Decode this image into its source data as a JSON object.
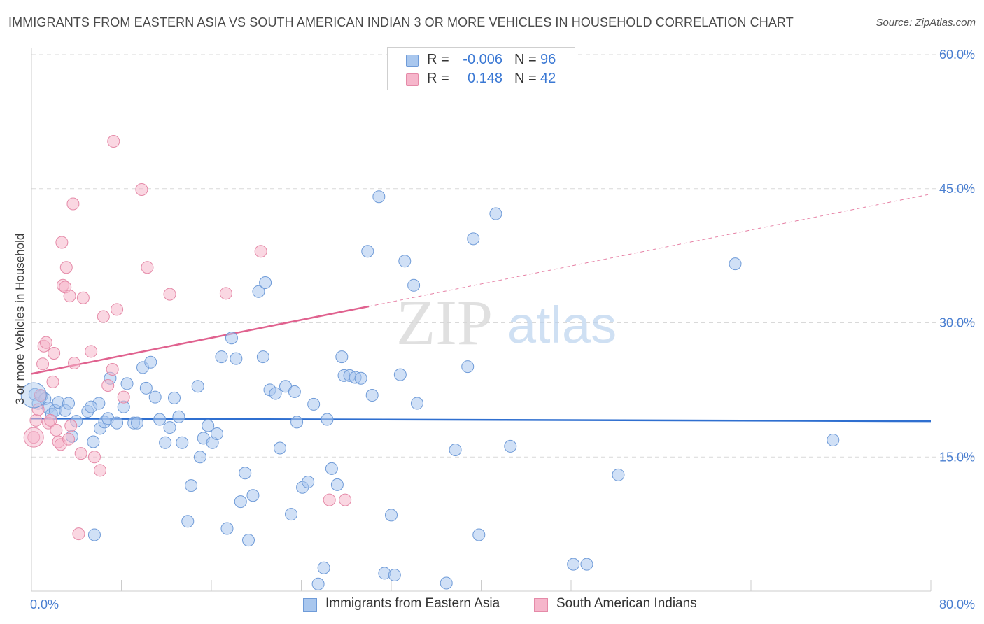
{
  "title": "IMMIGRANTS FROM EASTERN ASIA VS SOUTH AMERICAN INDIAN 3 OR MORE VEHICLES IN HOUSEHOLD CORRELATION CHART",
  "source": "Source: ZipAtlas.com",
  "watermark": {
    "zip": "ZIP",
    "atlas": "atlas"
  },
  "legend": {
    "rows": [
      {
        "r_label": "R =",
        "r_value": "-0.006",
        "n_label": "N =",
        "n_value": "96"
      },
      {
        "r_label": "R =",
        "r_value": "0.148",
        "n_label": "N =",
        "n_value": "42"
      }
    ]
  },
  "bottom_legend": {
    "series1": "Immigrants from Eastern Asia",
    "series2": "South American Indians"
  },
  "colors": {
    "blue_fill": "#a9c7ee",
    "blue_stroke": "#6f9bd8",
    "blue_line": "#2f6fd0",
    "pink_fill": "#f6b6cb",
    "pink_stroke": "#e58aa8",
    "pink_line": "#e0628f",
    "tick_text": "#4a7fd1",
    "grid": "#d9d9d9"
  },
  "chart_data": {
    "type": "scatter",
    "title": "IMMIGRANTS FROM EASTERN ASIA VS SOUTH AMERICAN INDIAN 3 OR MORE VEHICLES IN HOUSEHOLD CORRELATION CHART",
    "xlabel": "",
    "ylabel": "3 or more Vehicles in Household",
    "xlim": [
      0,
      80
    ],
    "ylim": [
      0,
      60
    ],
    "x_tick_labels": [
      "0.0%",
      "80.0%"
    ],
    "y_ticks": [
      15,
      30,
      45,
      60
    ],
    "y_tick_labels": [
      "15.0%",
      "30.0%",
      "45.0%",
      "60.0%"
    ],
    "series": [
      {
        "name": "Immigrants from Eastern Asia",
        "r": -0.006,
        "n": 96,
        "trend": {
          "x0": 0,
          "y0": 19.3,
          "x1": 80,
          "y1": 19.0,
          "dashed_from": null
        },
        "points": [
          [
            0.3,
            22.0
          ],
          [
            0.6,
            21.0
          ],
          [
            0.9,
            21.8
          ],
          [
            1.2,
            21.5
          ],
          [
            1.5,
            20.5
          ],
          [
            1.8,
            19.8
          ],
          [
            2.1,
            20.2
          ],
          [
            2.4,
            21.1
          ],
          [
            3.0,
            20.2
          ],
          [
            3.3,
            21.0
          ],
          [
            3.6,
            17.3
          ],
          [
            4.0,
            19.0
          ],
          [
            5.0,
            20.1
          ],
          [
            6.0,
            21.0
          ],
          [
            5.3,
            20.6
          ],
          [
            5.5,
            16.7
          ],
          [
            5.6,
            6.3
          ],
          [
            6.1,
            18.2
          ],
          [
            6.5,
            18.9
          ],
          [
            6.8,
            19.3
          ],
          [
            7.0,
            23.8
          ],
          [
            7.6,
            18.8
          ],
          [
            8.2,
            20.6
          ],
          [
            8.5,
            23.2
          ],
          [
            9.1,
            18.8
          ],
          [
            9.4,
            18.8
          ],
          [
            9.9,
            25.0
          ],
          [
            10.2,
            22.7
          ],
          [
            10.6,
            25.6
          ],
          [
            11.0,
            21.7
          ],
          [
            11.4,
            19.2
          ],
          [
            11.9,
            16.6
          ],
          [
            12.3,
            18.3
          ],
          [
            12.7,
            21.6
          ],
          [
            13.1,
            19.5
          ],
          [
            13.4,
            16.6
          ],
          [
            13.9,
            7.8
          ],
          [
            14.2,
            11.8
          ],
          [
            14.8,
            22.9
          ],
          [
            15.0,
            15.0
          ],
          [
            15.3,
            17.1
          ],
          [
            15.7,
            18.5
          ],
          [
            16.1,
            16.6
          ],
          [
            16.5,
            17.6
          ],
          [
            16.9,
            26.2
          ],
          [
            17.4,
            7.0
          ],
          [
            17.8,
            28.3
          ],
          [
            18.2,
            26.0
          ],
          [
            18.6,
            10.0
          ],
          [
            19.0,
            13.2
          ],
          [
            19.3,
            5.7
          ],
          [
            19.7,
            10.7
          ],
          [
            20.2,
            33.5
          ],
          [
            20.6,
            26.2
          ],
          [
            20.8,
            34.5
          ],
          [
            21.2,
            22.5
          ],
          [
            21.7,
            22.1
          ],
          [
            22.1,
            16.0
          ],
          [
            22.6,
            22.9
          ],
          [
            23.1,
            8.6
          ],
          [
            23.4,
            22.3
          ],
          [
            23.6,
            18.9
          ],
          [
            24.1,
            11.6
          ],
          [
            24.6,
            12.2
          ],
          [
            25.1,
            20.9
          ],
          [
            25.5,
            0.8
          ],
          [
            26.0,
            2.6
          ],
          [
            26.3,
            19.2
          ],
          [
            26.7,
            13.7
          ],
          [
            27.2,
            11.9
          ],
          [
            27.6,
            26.2
          ],
          [
            27.8,
            24.1
          ],
          [
            28.3,
            24.1
          ],
          [
            28.8,
            23.9
          ],
          [
            29.3,
            23.8
          ],
          [
            29.9,
            38.0
          ],
          [
            30.3,
            21.9
          ],
          [
            30.9,
            44.1
          ],
          [
            31.4,
            2.0
          ],
          [
            32.0,
            8.5
          ],
          [
            32.3,
            1.8
          ],
          [
            32.8,
            24.2
          ],
          [
            33.2,
            36.9
          ],
          [
            34.0,
            34.2
          ],
          [
            34.3,
            21.0
          ],
          [
            36.9,
            0.9
          ],
          [
            37.7,
            15.8
          ],
          [
            38.8,
            25.1
          ],
          [
            39.3,
            39.4
          ],
          [
            39.8,
            6.3
          ],
          [
            41.3,
            42.2
          ],
          [
            42.6,
            16.2
          ],
          [
            48.2,
            3.0
          ],
          [
            49.4,
            3.0
          ],
          [
            52.2,
            13.0
          ],
          [
            62.6,
            36.6
          ],
          [
            71.3,
            16.9
          ]
        ]
      },
      {
        "name": "South American Indians",
        "r": 0.148,
        "n": 42,
        "trend": {
          "x0": 0,
          "y0": 24.3,
          "x1": 80,
          "y1": 44.4,
          "dashed_from": 30.0
        },
        "points": [
          [
            0.2,
            17.2
          ],
          [
            0.4,
            19.1
          ],
          [
            0.6,
            20.3
          ],
          [
            0.8,
            21.9
          ],
          [
            1.0,
            25.4
          ],
          [
            1.1,
            27.4
          ],
          [
            1.3,
            27.8
          ],
          [
            1.5,
            18.8
          ],
          [
            1.7,
            19.1
          ],
          [
            1.9,
            23.4
          ],
          [
            2.0,
            26.6
          ],
          [
            2.2,
            18.0
          ],
          [
            2.4,
            16.7
          ],
          [
            2.6,
            16.4
          ],
          [
            2.7,
            39.0
          ],
          [
            2.8,
            34.2
          ],
          [
            3.0,
            34.0
          ],
          [
            3.1,
            36.2
          ],
          [
            3.3,
            17.0
          ],
          [
            3.4,
            33.0
          ],
          [
            3.5,
            18.5
          ],
          [
            3.7,
            43.3
          ],
          [
            3.8,
            25.5
          ],
          [
            4.2,
            6.4
          ],
          [
            4.4,
            15.4
          ],
          [
            4.6,
            32.8
          ],
          [
            5.3,
            26.8
          ],
          [
            5.6,
            15.0
          ],
          [
            6.1,
            13.5
          ],
          [
            6.4,
            30.7
          ],
          [
            6.8,
            23.0
          ],
          [
            7.2,
            24.8
          ],
          [
            7.3,
            50.3
          ],
          [
            7.6,
            31.5
          ],
          [
            8.2,
            21.7
          ],
          [
            9.8,
            44.9
          ],
          [
            10.3,
            36.2
          ],
          [
            12.3,
            33.2
          ],
          [
            17.3,
            33.3
          ],
          [
            20.4,
            38.0
          ],
          [
            26.5,
            10.2
          ],
          [
            27.9,
            10.2
          ]
        ]
      }
    ]
  }
}
